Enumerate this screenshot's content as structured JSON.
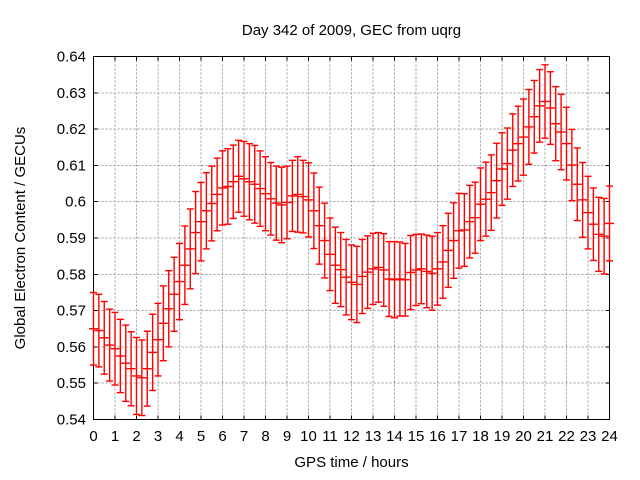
{
  "title": "Day 342 of 2009, GEC from uqrg",
  "colors": {
    "background": "#ffffff",
    "marker": "#ff0000",
    "grid": "#9b9b9b",
    "axis": "#000000",
    "text": "#000000"
  },
  "chart_data": {
    "type": "scatter",
    "subtype": "yerrorbars",
    "title": "Day 342 of 2009, GEC from uqrg",
    "xlabel": "GPS time / hours",
    "ylabel": "Global Electron Content / GECUs",
    "xlim": [
      0,
      24
    ],
    "ylim": [
      0.54,
      0.64
    ],
    "xtick_step": 1,
    "ytick_step": 0.01,
    "grid": true,
    "legend": "none",
    "marker_color": "#ff0000",
    "xtick_labels": [
      "0",
      "1",
      "2",
      "3",
      "4",
      "5",
      "6",
      "7",
      "8",
      "9",
      "10",
      "11",
      "12",
      "13",
      "14",
      "15",
      "16",
      "17",
      "18",
      "19",
      "20",
      "21",
      "22",
      "23",
      "24"
    ],
    "ytick_labels": [
      "0.54",
      "0.55",
      "0.56",
      "0.57",
      "0.58",
      "0.59",
      "0.6",
      "0.61",
      "0.62",
      "0.63",
      "0.64"
    ],
    "series": [
      {
        "name": "GEC",
        "x": [
          0,
          0.25,
          0.5,
          0.75,
          1,
          1.25,
          1.5,
          1.75,
          2,
          2.25,
          2.5,
          2.75,
          3,
          3.25,
          3.5,
          3.75,
          4,
          4.25,
          4.5,
          4.75,
          5,
          5.25,
          5.5,
          5.75,
          6,
          6.25,
          6.5,
          6.75,
          7,
          7.25,
          7.5,
          7.75,
          8,
          8.25,
          8.5,
          8.75,
          9,
          9.25,
          9.5,
          9.75,
          10,
          10.25,
          10.5,
          10.75,
          11,
          11.25,
          11.5,
          11.75,
          12,
          12.25,
          12.5,
          12.75,
          13,
          13.25,
          13.5,
          13.75,
          14,
          14.25,
          14.5,
          14.75,
          15,
          15.25,
          15.5,
          15.75,
          16,
          16.25,
          16.5,
          16.75,
          17,
          17.25,
          17.5,
          17.75,
          18,
          18.25,
          18.5,
          18.75,
          19,
          19.25,
          19.5,
          19.75,
          20,
          20.25,
          20.5,
          20.75,
          21,
          21.25,
          21.5,
          21.75,
          22,
          22.25,
          22.5,
          22.75,
          23,
          23.25,
          23.5,
          23.75,
          24
        ],
        "y": [
          0.565,
          0.5645,
          0.5625,
          0.5605,
          0.5595,
          0.5575,
          0.5555,
          0.554,
          0.552,
          0.5515,
          0.554,
          0.5585,
          0.562,
          0.5665,
          0.5705,
          0.5745,
          0.578,
          0.5825,
          0.587,
          0.5915,
          0.5945,
          0.5975,
          0.5995,
          0.602,
          0.6038,
          0.6042,
          0.6055,
          0.607,
          0.6063,
          0.6055,
          0.6048,
          0.6036,
          0.6022,
          0.6008,
          0.5996,
          0.5991,
          0.5998,
          0.6016,
          0.602,
          0.6014,
          0.6005,
          0.5975,
          0.5934,
          0.5893,
          0.5855,
          0.5825,
          0.5813,
          0.5792,
          0.5778,
          0.5772,
          0.5794,
          0.5806,
          0.5815,
          0.5819,
          0.5812,
          0.5787,
          0.5785,
          0.5787,
          0.5785,
          0.5805,
          0.5812,
          0.5815,
          0.5808,
          0.5803,
          0.5815,
          0.5834,
          0.5866,
          0.5893,
          0.592,
          0.5922,
          0.5945,
          0.5956,
          0.5993,
          0.6007,
          0.6025,
          0.6058,
          0.609,
          0.6105,
          0.6142,
          0.616,
          0.6178,
          0.6206,
          0.6234,
          0.6264,
          0.6276,
          0.6258,
          0.6215,
          0.6192,
          0.616,
          0.6101,
          0.6048,
          0.6005,
          0.597,
          0.5938,
          0.591,
          0.5905,
          0.594
        ],
        "yerr": [
          0.01,
          0.01,
          0.01,
          0.0099,
          0.01,
          0.0101,
          0.0105,
          0.0102,
          0.0106,
          0.0104,
          0.0103,
          0.0105,
          0.01,
          0.0103,
          0.0105,
          0.0102,
          0.0105,
          0.0108,
          0.011,
          0.0113,
          0.0108,
          0.0105,
          0.0103,
          0.01,
          0.0102,
          0.0104,
          0.0101,
          0.0099,
          0.0103,
          0.0105,
          0.0107,
          0.0104,
          0.0102,
          0.01,
          0.0102,
          0.0104,
          0.01,
          0.0098,
          0.0104,
          0.01,
          0.0102,
          0.0104,
          0.0106,
          0.0103,
          0.01,
          0.0105,
          0.0102,
          0.0104,
          0.0103,
          0.0105,
          0.0102,
          0.01,
          0.0098,
          0.0096,
          0.01,
          0.0103,
          0.0105,
          0.0102,
          0.01,
          0.0102,
          0.0098,
          0.0096,
          0.01,
          0.0102,
          0.01,
          0.01,
          0.0102,
          0.0104,
          0.0103,
          0.01,
          0.01,
          0.0098,
          0.01,
          0.0102,
          0.0104,
          0.0103,
          0.01,
          0.0098,
          0.01,
          0.0103,
          0.0105,
          0.0103,
          0.01,
          0.01,
          0.0101,
          0.01,
          0.0102,
          0.0104,
          0.01,
          0.0098,
          0.01,
          0.0103,
          0.01,
          0.01,
          0.0102,
          0.0104,
          0.0103
        ]
      }
    ]
  }
}
